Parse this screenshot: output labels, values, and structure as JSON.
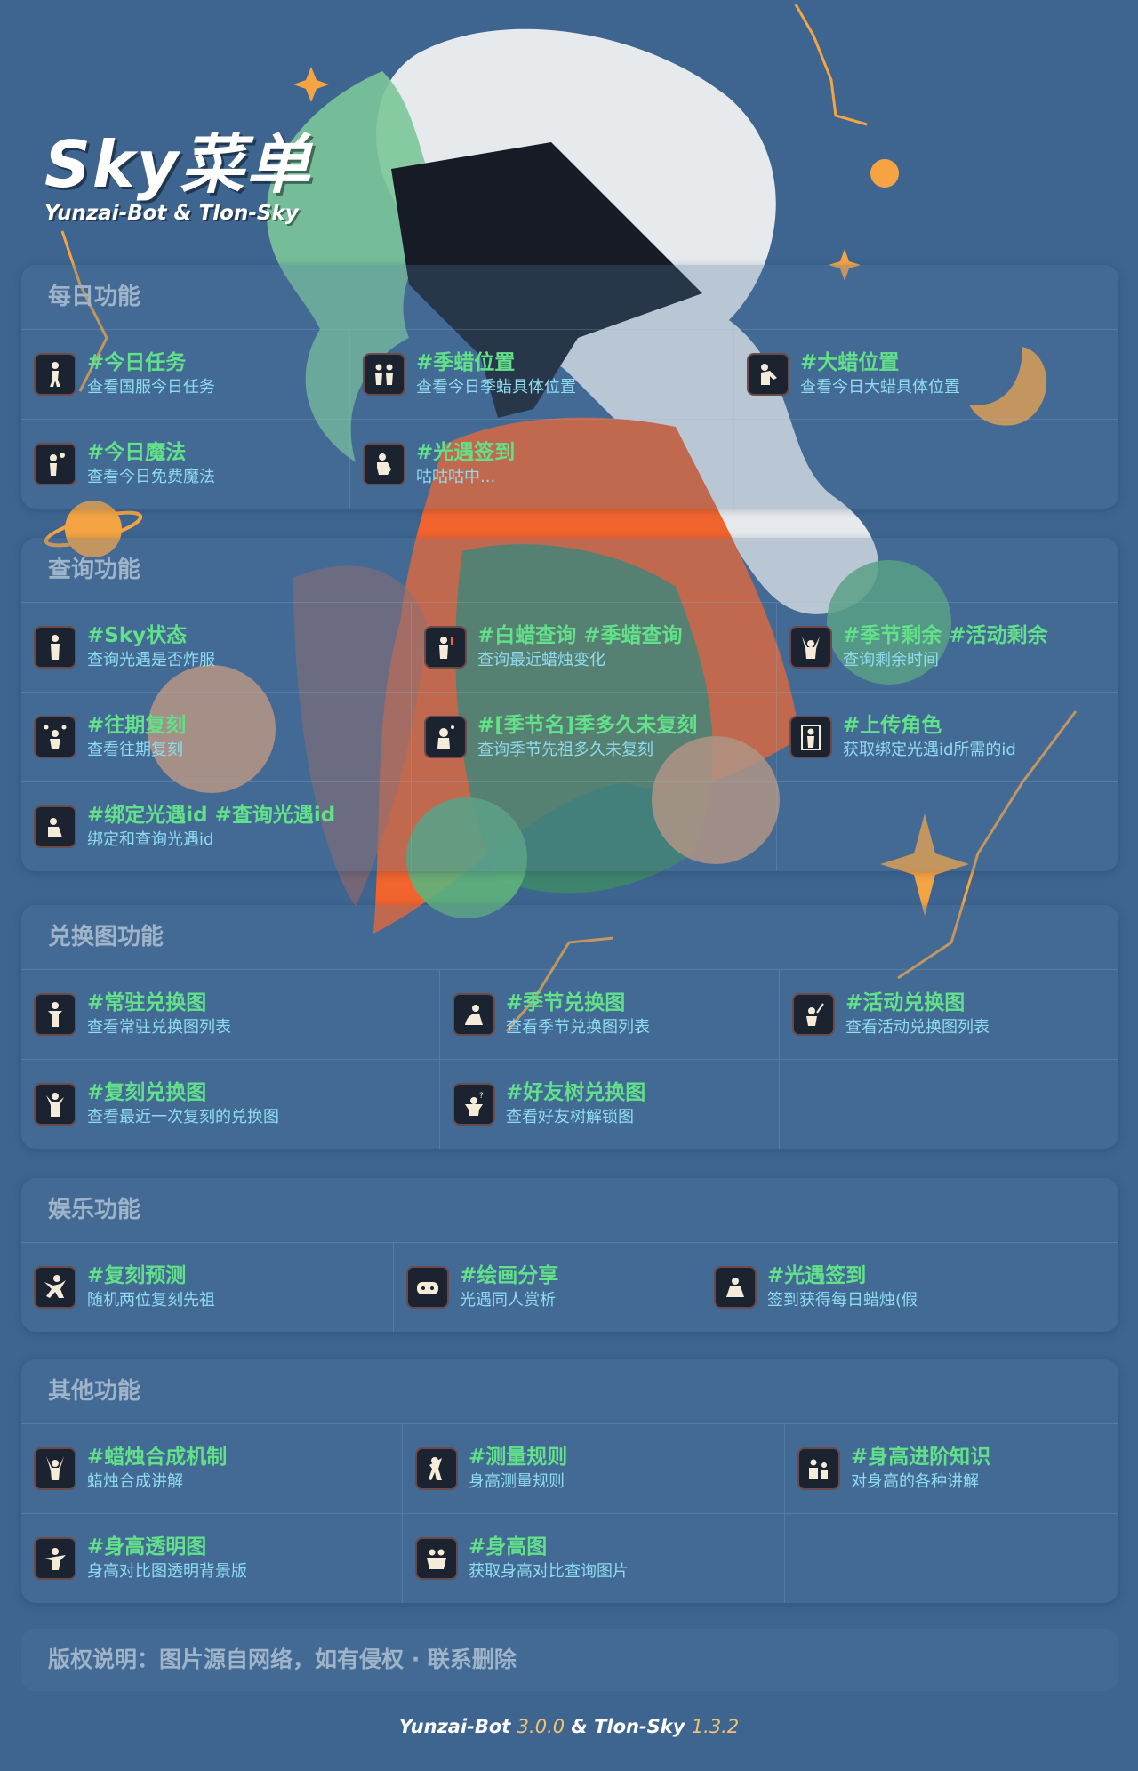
{
  "header": {
    "title": "Sky菜单",
    "subtitle": "Yunzai-Bot & Tlon-Sky"
  },
  "colors": {
    "background": "#3d6590",
    "command": "#62e08a",
    "description": "#8fdcf0",
    "heading": "#9fb4c8",
    "version": "#f3c26b"
  },
  "sections": [
    {
      "title": "每日功能",
      "items": [
        {
          "icon": "walking-figure-icon",
          "cmd": "#今日任务",
          "desc": "查看国服今日任务"
        },
        {
          "icon": "two-figures-icon",
          "cmd": "#季蜡位置",
          "desc": "查看今日季蜡具体位置"
        },
        {
          "icon": "kneeling-figure-icon",
          "cmd": "#大蜡位置",
          "desc": "查看今日大蜡具体位置"
        },
        {
          "icon": "figure-with-bubble-icon",
          "cmd": "#今日魔法",
          "desc": "查看今日免费魔法"
        },
        {
          "icon": "sitting-figure-icon",
          "cmd": "#光遇签到",
          "desc": "咕咕咕中..."
        }
      ]
    },
    {
      "title": "查询功能",
      "items": [
        {
          "icon": "standing-figure-icon",
          "cmd": "#Sky状态",
          "desc": "查询光遇是否炸服"
        },
        {
          "icon": "figure-with-candle-icon",
          "cmd": "#白蜡查询 #季蜡查询",
          "desc": "查询最近蜡烛变化"
        },
        {
          "icon": "cheering-figure-icon",
          "cmd": "#季节剩余 #活动剩余",
          "desc": "查询剩余时间"
        },
        {
          "icon": "juggling-figure-icon",
          "cmd": "#往期复刻",
          "desc": "查看往期复刻"
        },
        {
          "icon": "thinking-figure-icon",
          "cmd": "#[季节名]季多久未复刻",
          "desc": "查询季节先祖多久未复刻"
        },
        {
          "icon": "figure-in-doorway-icon",
          "cmd": "#上传角色",
          "desc": "获取绑定光遇id所需的id"
        },
        {
          "icon": "crouching-figure-icon",
          "cmd": "#绑定光遇id #查询光遇id",
          "desc": "绑定和查询光遇id"
        }
      ]
    },
    {
      "title": "兑换图功能",
      "items": [
        {
          "icon": "bowing-figure-icon",
          "cmd": "#常驻兑换图",
          "desc": "查看常驻兑换图列表"
        },
        {
          "icon": "resting-figure-icon",
          "cmd": "#季节兑换图",
          "desc": "查看季节兑换图列表"
        },
        {
          "icon": "figure-with-wand-icon",
          "cmd": "#活动兑换图",
          "desc": "查看活动兑换图列表"
        },
        {
          "icon": "waving-figure-icon",
          "cmd": "#复刻兑换图",
          "desc": "查看最近一次复刻的兑换图"
        },
        {
          "icon": "confused-figure-icon",
          "cmd": "#好友树兑换图",
          "desc": "查看好友树解锁图"
        }
      ]
    },
    {
      "title": "娱乐功能",
      "items": [
        {
          "icon": "jumping-figure-icon",
          "cmd": "#复刻预测",
          "desc": "随机两位复刻先祖"
        },
        {
          "icon": "gamepad-icon",
          "cmd": "#绘画分享",
          "desc": "光遇同人赏析"
        },
        {
          "icon": "meditating-figure-icon",
          "cmd": "#光遇签到",
          "desc": "签到获得每日蜡烛(假"
        }
      ]
    },
    {
      "title": "其他功能",
      "items": [
        {
          "icon": "arms-raised-figure-icon",
          "cmd": "#蜡烛合成机制",
          "desc": "蜡烛合成讲解"
        },
        {
          "icon": "dancing-figure-icon",
          "cmd": "#测量规则",
          "desc": "身高测量规则"
        },
        {
          "icon": "pair-figures-icon",
          "cmd": "#身高进阶知识",
          "desc": "对身高的各种讲解"
        },
        {
          "icon": "spinning-figure-icon",
          "cmd": "#身高透明图",
          "desc": "身高对比图透明背景版"
        },
        {
          "icon": "hugging-figures-icon",
          "cmd": "#身高图",
          "desc": "获取身高对比查询图片"
        }
      ]
    }
  ],
  "copyright": "版权说明：图片源自网络，如有侵权 · 联系删除",
  "footer": {
    "bot": "Yunzai-Bot",
    "bot_version": "3.0.0",
    "separator": "&",
    "plugin": "Tlon-Sky",
    "plugin_version": "1.3.2"
  }
}
